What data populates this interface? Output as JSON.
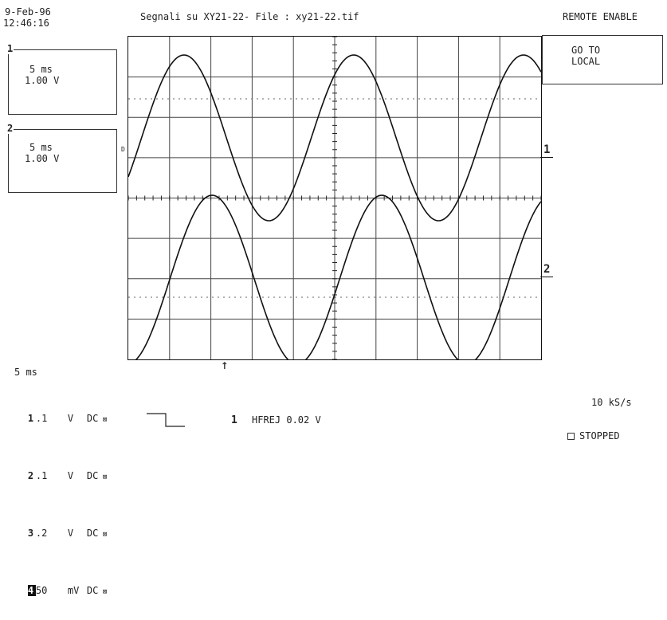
{
  "header": {
    "date": "9-Feb-96",
    "time": "12:46:16",
    "title": "Segnali su XY21-22- File : xy21-22.tif",
    "remote": "REMOTE ENABLE"
  },
  "buttons": {
    "go_to_line1": "GO TO",
    "go_to_line2": "LOCAL"
  },
  "channel_boxes": [
    {
      "num": "1",
      "timebase": "5 ms",
      "volts": "1.00 V"
    },
    {
      "num": "2",
      "timebase": "5 ms",
      "volts": "1.00 V"
    }
  ],
  "trace_labels": {
    "ch1": "1",
    "ch2": "2",
    "marker": "D",
    "trigger_arrow": "↑"
  },
  "bottom": {
    "timebase": "5 ms",
    "channels": [
      {
        "num": "1",
        "scale": ".1",
        "unit": "V",
        "coupling": "DC"
      },
      {
        "num": "2",
        "scale": ".1",
        "unit": "V",
        "coupling": "DC"
      },
      {
        "num": "3",
        "scale": ".2",
        "unit": "V",
        "coupling": "DC"
      },
      {
        "num": "4",
        "scale": "50",
        "unit": "mV",
        "coupling": "DC"
      }
    ],
    "trigger_channel": "1",
    "trigger_text": "HFREJ 0.02 V",
    "sample_rate": "10 kS/s",
    "status": "STOPPED"
  }
}
